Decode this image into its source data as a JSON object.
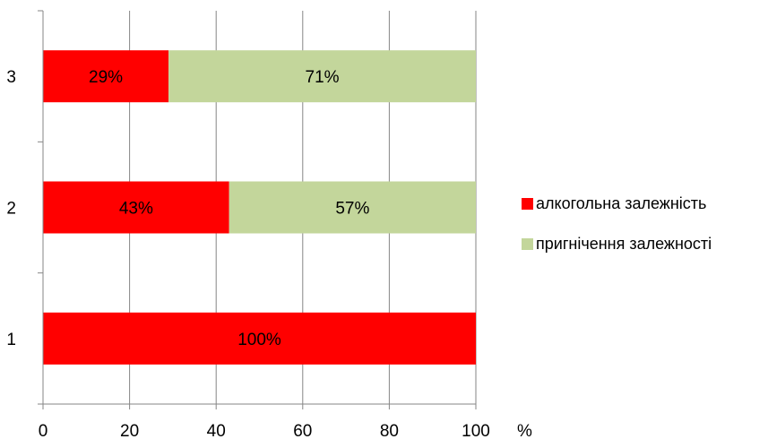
{
  "chart_data": {
    "type": "bar",
    "orientation": "horizontal",
    "stacked": true,
    "categories": [
      "1",
      "2",
      "3"
    ],
    "series": [
      {
        "name": "алкогольна залежність",
        "values": [
          100,
          43,
          29
        ],
        "labels": [
          "100%",
          "43%",
          "29%"
        ],
        "color": "#ff0000"
      },
      {
        "name": "пригнічення залежності",
        "values": [
          0,
          57,
          71
        ],
        "labels": [
          "",
          "57%",
          "71%"
        ],
        "color": "#c3d69b"
      }
    ],
    "xlim": [
      0,
      100
    ],
    "xticks": [
      0,
      20,
      40,
      60,
      80,
      100
    ],
    "xunit": "%",
    "grid": "vertical",
    "legend_position": "right"
  }
}
